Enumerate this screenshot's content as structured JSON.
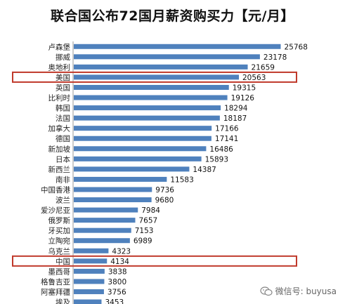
{
  "chart_data": {
    "type": "bar",
    "orientation": "horizontal",
    "title": "联合国公布72国月薪资购买力【元/月】",
    "categories": [
      "卢森堡",
      "挪威",
      "奥地利",
      "美国",
      "英国",
      "比利时",
      "韩国",
      "法国",
      "加拿大",
      "德国",
      "新加坡",
      "日本",
      "新西兰",
      "南非",
      "中国香港",
      "波兰",
      "爱沙尼亚",
      "俄罗斯",
      "牙买加",
      "立陶宛",
      "乌克兰",
      "中国",
      "墨西哥",
      "格鲁吉亚",
      "阿塞拜疆",
      "埃及"
    ],
    "values": [
      25768,
      23178,
      21659,
      20563,
      19315,
      19126,
      18294,
      18187,
      17166,
      17141,
      16486,
      15893,
      14387,
      11583,
      9736,
      9680,
      7984,
      7657,
      7153,
      6989,
      4323,
      4134,
      3838,
      3800,
      3756,
      3453
    ],
    "highlighted": [
      "美国",
      "中国"
    ],
    "bar_color": "#4f81bd",
    "highlight_color": "#c0392b",
    "xlim": [
      0,
      28000
    ],
    "grid": false,
    "legend": "none"
  },
  "watermark": {
    "text": "微信号: buyusa"
  }
}
